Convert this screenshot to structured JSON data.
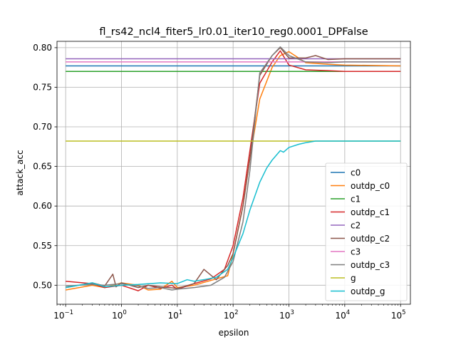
{
  "chart_data": {
    "type": "line",
    "title": "fl_rs42_ncl4_fiter5_lr0.01_iter10_reg0.0001_DPFalse",
    "xlabel": "epsilon",
    "ylabel": "attack_acc",
    "xscale": "log",
    "xlim": [
      0.07,
      150000
    ],
    "ylim": [
      0.476,
      0.808
    ],
    "grid": true,
    "legend_position": "lower-right",
    "x_ticks": [
      {
        "value": 0.1,
        "base": "10",
        "exp": "−1"
      },
      {
        "value": 1,
        "base": "10",
        "exp": "0"
      },
      {
        "value": 10,
        "base": "10",
        "exp": "1"
      },
      {
        "value": 100,
        "base": "10",
        "exp": "2"
      },
      {
        "value": 1000,
        "base": "10",
        "exp": "3"
      },
      {
        "value": 10000,
        "base": "10",
        "exp": "4"
      },
      {
        "value": 100000,
        "base": "10",
        "exp": "5"
      }
    ],
    "y_ticks": [
      {
        "value": 0.5,
        "label": "0.50"
      },
      {
        "value": 0.55,
        "label": "0.55"
      },
      {
        "value": 0.6,
        "label": "0.60"
      },
      {
        "value": 0.65,
        "label": "0.65"
      },
      {
        "value": 0.7,
        "label": "0.70"
      },
      {
        "value": 0.75,
        "label": "0.75"
      },
      {
        "value": 0.8,
        "label": "0.80"
      }
    ],
    "series": [
      {
        "name": "c0",
        "color": "#1f77b4",
        "x": [
          0.1,
          100000
        ],
        "y": [
          0.777,
          0.777
        ]
      },
      {
        "name": "outdp_c0",
        "color": "#ff7f0e",
        "x": [
          0.1,
          0.3,
          0.5,
          1,
          2,
          3,
          5,
          8,
          10,
          20,
          50,
          80,
          100,
          150,
          200,
          300,
          500,
          700,
          1000,
          2000,
          5000,
          10000,
          100000
        ],
        "y": [
          0.494,
          0.5,
          0.497,
          0.503,
          0.5,
          0.494,
          0.495,
          0.505,
          0.497,
          0.5,
          0.508,
          0.512,
          0.54,
          0.6,
          0.66,
          0.735,
          0.775,
          0.79,
          0.795,
          0.781,
          0.779,
          0.778,
          0.777
        ]
      },
      {
        "name": "c1",
        "color": "#2ca02c",
        "x": [
          0.1,
          100000
        ],
        "y": [
          0.77,
          0.77
        ]
      },
      {
        "name": "outdp_c1",
        "color": "#d62728",
        "x": [
          0.1,
          0.3,
          0.5,
          1,
          2,
          3,
          5,
          8,
          10,
          20,
          40,
          70,
          100,
          150,
          200,
          300,
          500,
          700,
          1000,
          2000,
          5000,
          10000,
          100000
        ],
        "y": [
          0.505,
          0.502,
          0.497,
          0.5,
          0.493,
          0.5,
          0.496,
          0.5,
          0.495,
          0.502,
          0.508,
          0.52,
          0.55,
          0.61,
          0.67,
          0.755,
          0.782,
          0.796,
          0.778,
          0.772,
          0.771,
          0.77,
          0.77
        ]
      },
      {
        "name": "c2",
        "color": "#9467bd",
        "x": [
          0.1,
          100000
        ],
        "y": [
          0.786,
          0.786
        ]
      },
      {
        "name": "outdp_c2",
        "color": "#8c564b",
        "x": [
          0.1,
          0.3,
          0.5,
          0.7,
          0.8,
          1,
          2,
          3,
          5,
          10,
          20,
          30,
          50,
          80,
          100,
          150,
          200,
          300,
          500,
          700,
          1000,
          2000,
          3000,
          5000,
          10000,
          100000
        ],
        "y": [
          0.497,
          0.503,
          0.499,
          0.514,
          0.498,
          0.503,
          0.497,
          0.5,
          0.498,
          0.496,
          0.502,
          0.52,
          0.507,
          0.525,
          0.54,
          0.6,
          0.66,
          0.765,
          0.79,
          0.8,
          0.787,
          0.787,
          0.79,
          0.785,
          0.786,
          0.786
        ]
      },
      {
        "name": "c3",
        "color": "#e377c2",
        "x": [
          0.1,
          100000
        ],
        "y": [
          0.782,
          0.782
        ]
      },
      {
        "name": "outdp_c3",
        "color": "#7f7f7f",
        "x": [
          0.1,
          0.3,
          0.5,
          1,
          2,
          3,
          5,
          8,
          10,
          20,
          40,
          70,
          100,
          150,
          200,
          300,
          500,
          700,
          1000,
          2000,
          5000,
          10000,
          100000
        ],
        "y": [
          0.499,
          0.501,
          0.5,
          0.502,
          0.499,
          0.496,
          0.497,
          0.494,
          0.495,
          0.497,
          0.5,
          0.51,
          0.53,
          0.58,
          0.645,
          0.768,
          0.79,
          0.801,
          0.79,
          0.782,
          0.781,
          0.782,
          0.782
        ]
      },
      {
        "name": "g",
        "color": "#bcbd22",
        "x": [
          0.1,
          100000
        ],
        "y": [
          0.682,
          0.682
        ]
      },
      {
        "name": "outdp_g",
        "color": "#17becf",
        "x": [
          0.1,
          0.3,
          0.5,
          1,
          2,
          5,
          10,
          15,
          20,
          30,
          50,
          80,
          100,
          150,
          200,
          300,
          400,
          500,
          700,
          800,
          1000,
          1500,
          2000,
          3000,
          5000,
          10000,
          100000
        ],
        "y": [
          0.497,
          0.503,
          0.498,
          0.5,
          0.501,
          0.503,
          0.502,
          0.507,
          0.505,
          0.507,
          0.51,
          0.52,
          0.535,
          0.565,
          0.595,
          0.63,
          0.648,
          0.658,
          0.67,
          0.668,
          0.674,
          0.678,
          0.68,
          0.682,
          0.682,
          0.682,
          0.682
        ]
      }
    ]
  }
}
